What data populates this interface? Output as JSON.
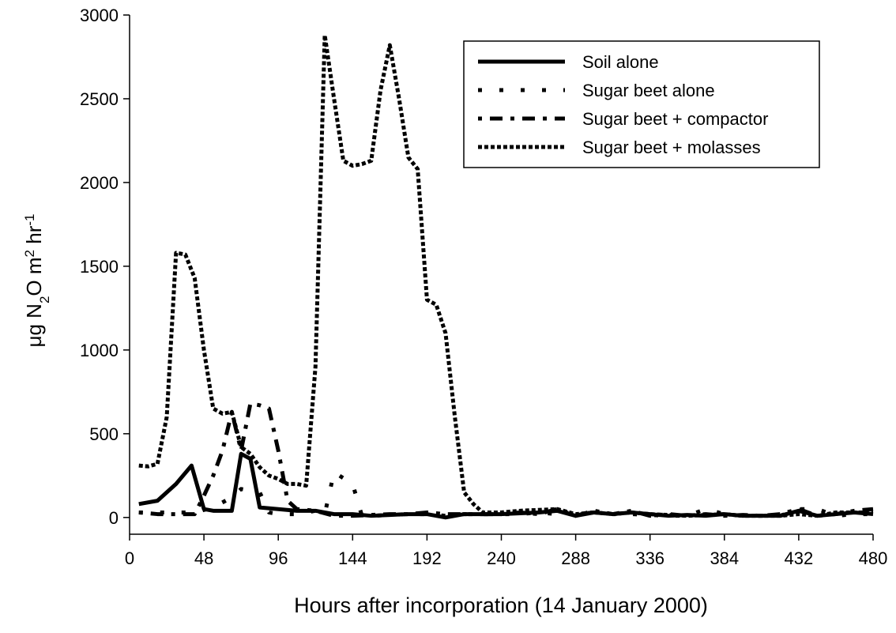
{
  "chart_data": {
    "type": "line",
    "xlabel": "Hours after incorporation (14 January 2000)",
    "ylabel": [
      "μg N",
      "2",
      "O m",
      "2",
      " hr",
      "-1"
    ],
    "xlim": [
      0,
      480
    ],
    "ylim": [
      -100,
      3000
    ],
    "xticks": [
      0,
      48,
      96,
      144,
      192,
      240,
      288,
      336,
      384,
      432,
      480
    ],
    "yticks": [
      0,
      500,
      1000,
      1500,
      2000,
      2500,
      3000
    ],
    "grid": false,
    "legend": "upper right",
    "series": [
      {
        "name": "Soil alone",
        "color": "#000000",
        "dash": "none",
        "x": [
          6,
          18,
          30,
          40,
          48,
          54,
          66,
          72,
          78,
          84,
          96,
          108,
          120,
          132,
          144,
          156,
          168,
          180,
          192,
          204,
          216,
          228,
          240,
          252,
          264,
          276,
          288,
          300,
          312,
          324,
          336,
          348,
          360,
          372,
          384,
          396,
          408,
          420,
          432,
          444,
          456,
          468,
          480
        ],
        "values": [
          80,
          100,
          200,
          310,
          50,
          40,
          40,
          380,
          350,
          60,
          50,
          40,
          40,
          20,
          20,
          10,
          15,
          20,
          20,
          0,
          20,
          20,
          20,
          25,
          30,
          40,
          10,
          30,
          20,
          30,
          20,
          10,
          15,
          10,
          20,
          10,
          10,
          10,
          40,
          10,
          20,
          30,
          20
        ]
      },
      {
        "name": "Sugar beet alone",
        "color": "#000000",
        "dash": "5 22",
        "x": [
          6,
          18,
          30,
          42,
          54,
          66,
          72,
          78,
          84,
          90,
          96,
          108,
          120,
          126,
          132,
          144,
          150,
          156,
          168,
          180,
          192,
          204,
          216,
          228,
          240,
          252,
          264,
          276,
          288,
          300,
          312,
          324,
          336,
          348,
          360,
          372,
          384,
          396,
          408,
          420,
          432,
          444,
          456,
          468,
          480
        ],
        "values": [
          30,
          30,
          30,
          30,
          60,
          120,
          170,
          160,
          150,
          30,
          20,
          20,
          40,
          20,
          270,
          200,
          10,
          10,
          15,
          20,
          20,
          10,
          20,
          20,
          20,
          20,
          30,
          20,
          25,
          30,
          20,
          20,
          15,
          10,
          10,
          50,
          20,
          10,
          10,
          10,
          50,
          50,
          10,
          20,
          20
        ]
      },
      {
        "name": "Sugar beet + compactor",
        "color": "#000000",
        "dash": "5 10 16 10",
        "x": [
          6,
          18,
          30,
          42,
          48,
          54,
          60,
          66,
          72,
          78,
          84,
          90,
          96,
          102,
          108,
          120,
          132,
          144,
          156,
          168,
          180,
          192,
          204,
          216,
          228,
          240,
          252,
          264,
          276,
          288,
          300,
          312,
          324,
          336,
          348,
          360,
          372,
          384,
          396,
          408,
          420,
          432,
          444,
          456,
          468,
          480
        ],
        "values": [
          30,
          20,
          20,
          20,
          130,
          250,
          400,
          630,
          400,
          680,
          670,
          650,
          400,
          100,
          50,
          40,
          10,
          10,
          15,
          20,
          20,
          30,
          20,
          20,
          20,
          20,
          30,
          20,
          50,
          10,
          40,
          20,
          40,
          10,
          20,
          10,
          20,
          10,
          15,
          10,
          20,
          50,
          10,
          20,
          40,
          50
        ]
      },
      {
        "name": "Sugar beet + molasses",
        "color": "#000000",
        "dash": "5 3",
        "x": [
          6,
          12,
          18,
          24,
          30,
          36,
          42,
          48,
          54,
          60,
          66,
          72,
          78,
          84,
          90,
          96,
          102,
          108,
          114,
          120,
          126,
          132,
          138,
          144,
          150,
          156,
          162,
          168,
          174,
          180,
          186,
          192,
          198,
          204,
          210,
          216,
          222,
          228,
          240,
          252,
          264,
          276,
          288,
          300,
          312,
          324,
          336,
          348,
          360,
          372,
          384,
          396,
          408,
          420,
          432,
          444,
          456,
          468,
          480
        ],
        "values": [
          310,
          305,
          320,
          600,
          1580,
          1570,
          1430,
          1000,
          650,
          620,
          630,
          420,
          380,
          300,
          250,
          230,
          200,
          200,
          190,
          900,
          2880,
          2500,
          2130,
          2100,
          2110,
          2130,
          2550,
          2820,
          2500,
          2150,
          2080,
          1300,
          1270,
          1100,
          600,
          150,
          80,
          30,
          30,
          40,
          45,
          50,
          20,
          30,
          20,
          30,
          20,
          15,
          10,
          15,
          20,
          10,
          10,
          10,
          20,
          10,
          30,
          30,
          30
        ]
      }
    ]
  }
}
